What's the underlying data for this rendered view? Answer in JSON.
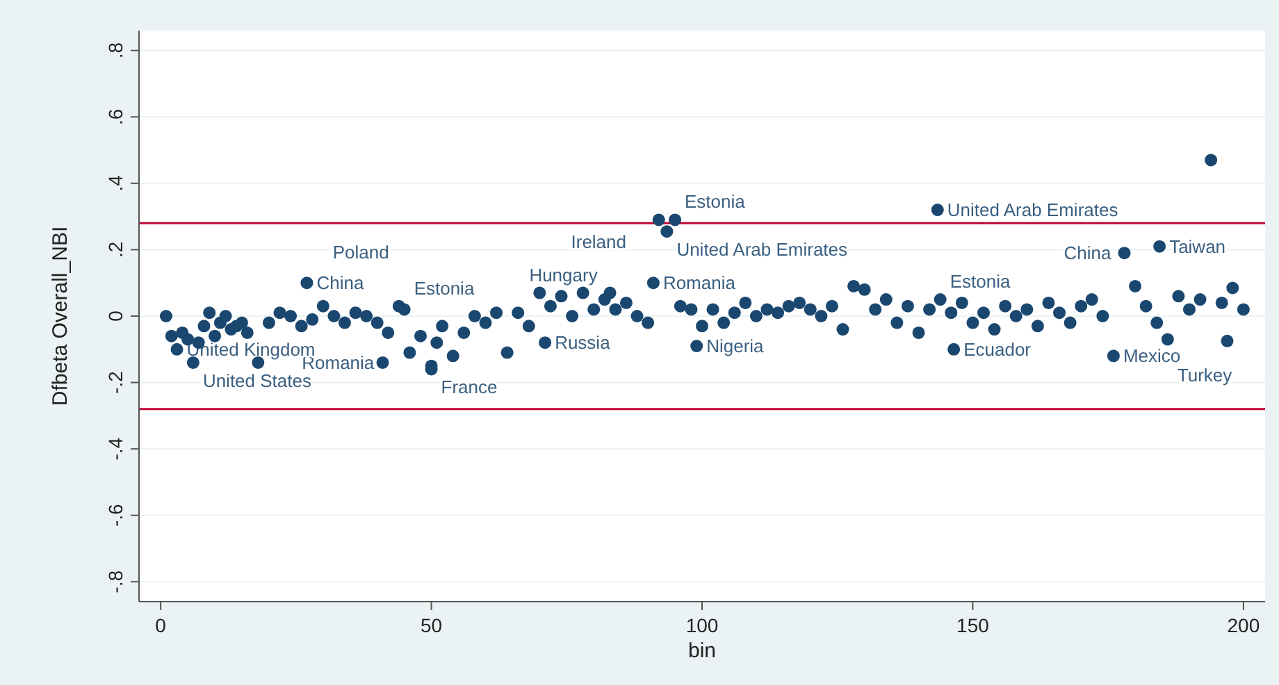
{
  "chart_data": {
    "type": "scatter",
    "xlabel": "bin",
    "ylabel": "Dfbeta Overall_NBI",
    "xlim": [
      -4,
      204
    ],
    "ylim": [
      -0.86,
      0.86
    ],
    "xticks": [
      0,
      50,
      100,
      150,
      200
    ],
    "yticks": [
      {
        "value": -0.8,
        "label": "-.8"
      },
      {
        "value": -0.6,
        "label": "-.6"
      },
      {
        "value": -0.4,
        "label": "-.4"
      },
      {
        "value": -0.2,
        "label": "-.2"
      },
      0,
      {
        "value": 0.2,
        "label": ".2"
      },
      {
        "value": 0.4,
        "label": ".4"
      },
      {
        "value": 0.6,
        "label": ".6"
      },
      {
        "value": 0.8,
        "label": ".8"
      }
    ],
    "grid": "y",
    "marker": "circle",
    "series": [
      {
        "color": "#1a476f",
        "x": [
          1,
          2,
          3,
          4,
          5,
          6,
          7,
          8,
          9,
          10,
          11,
          12,
          13,
          14,
          15,
          16,
          18,
          20,
          22,
          24,
          26,
          27,
          28,
          30,
          32,
          34,
          36,
          38,
          40,
          41,
          42,
          44,
          45,
          46,
          48,
          50,
          50,
          51,
          52,
          54,
          56,
          58,
          60,
          62,
          64,
          66,
          68,
          70,
          71,
          72,
          74,
          76,
          78,
          80,
          82,
          83,
          84,
          86,
          88,
          90,
          91,
          92,
          93.5,
          95,
          96,
          98,
          99,
          100,
          102,
          104,
          106,
          108,
          110,
          112,
          114,
          116,
          118,
          120,
          122,
          124,
          126,
          128,
          130,
          132,
          134,
          136,
          138,
          140,
          142,
          143.5,
          144,
          146,
          146.5,
          148,
          150,
          152,
          154,
          156,
          158,
          160,
          162,
          164,
          166,
          168,
          170,
          172,
          174,
          176,
          178,
          180,
          182,
          184,
          184.5,
          186,
          188,
          190,
          192,
          194,
          196,
          197,
          198,
          200
        ],
        "values": [
          0,
          -0.06,
          -0.1,
          -0.05,
          -0.07,
          -0.14,
          -0.08,
          -0.03,
          0.01,
          -0.06,
          -0.02,
          0,
          -0.04,
          -0.03,
          -0.02,
          -0.05,
          -0.14,
          -0.02,
          0.01,
          0,
          -0.03,
          0.1,
          -0.01,
          0.03,
          0,
          -0.02,
          0.01,
          0,
          -0.02,
          -0.14,
          -0.05,
          0.03,
          0.02,
          -0.11,
          -0.06,
          -0.16,
          -0.15,
          -0.08,
          -0.03,
          -0.12,
          -0.05,
          0,
          -0.02,
          0.01,
          -0.11,
          0.01,
          -0.03,
          0.07,
          -0.08,
          0.03,
          0.06,
          0,
          0.07,
          0.02,
          0.05,
          0.07,
          0.02,
          0.04,
          0,
          -0.02,
          0.1,
          0.29,
          0.255,
          0.29,
          0.03,
          0.02,
          -0.09,
          -0.03,
          0.02,
          -0.02,
          0.01,
          0.04,
          0,
          0.02,
          0.01,
          0.03,
          0.04,
          0.02,
          0,
          0.03,
          -0.04,
          0.09,
          0.08,
          0.02,
          0.05,
          -0.02,
          0.03,
          -0.05,
          0.02,
          0.32,
          0.05,
          0.01,
          -0.1,
          0.04,
          -0.02,
          0.01,
          -0.04,
          0.03,
          0,
          0.02,
          -0.03,
          0.04,
          0.01,
          -0.02,
          0.03,
          0.05,
          0,
          -0.12,
          0.19,
          0.09,
          0.03,
          -0.02,
          0.21,
          -0.07,
          0.06,
          0.02,
          0.05,
          0.47,
          0.04,
          -0.075,
          0.085,
          0.02
        ]
      }
    ],
    "ref_lines": [
      {
        "axis": "y",
        "value": 0.28,
        "color": "#c10534"
      },
      {
        "axis": "y",
        "value": -0.28,
        "color": "#c10534"
      }
    ],
    "annotations": [
      {
        "text": "China",
        "x": 27,
        "y": 0.1
      },
      {
        "text": "Poland",
        "x": 30,
        "y": 0.03
      },
      {
        "text": "Estonia",
        "x": 45,
        "y": 0.03
      },
      {
        "text": "United Kingdom",
        "x": 3,
        "y": -0.1
      },
      {
        "text": "United States",
        "x": 6,
        "y": -0.14
      },
      {
        "text": "Romania",
        "x": 41,
        "y": -0.14
      },
      {
        "text": "France",
        "x": 50,
        "y": -0.16
      },
      {
        "text": "Russia",
        "x": 71,
        "y": -0.08
      },
      {
        "text": "Ireland",
        "x": 74,
        "y": 0.06
      },
      {
        "text": "Hungary",
        "x": 83,
        "y": 0.07
      },
      {
        "text": "Romania",
        "x": 91,
        "y": 0.1
      },
      {
        "text": "Estonia",
        "x": 95,
        "y": 0.29
      },
      {
        "text": "United Arab Emirates",
        "x": 93.5,
        "y": 0.255
      },
      {
        "text": "Nigeria",
        "x": 99,
        "y": -0.09
      },
      {
        "text": "United Arab Emirates",
        "x": 143.5,
        "y": 0.32
      },
      {
        "text": "Estonia",
        "x": 144,
        "y": 0.05
      },
      {
        "text": "Ecuador",
        "x": 146.5,
        "y": -0.1
      },
      {
        "text": "China",
        "x": 178,
        "y": 0.19
      },
      {
        "text": "Taiwan",
        "x": 184.5,
        "y": 0.21
      },
      {
        "text": "Mexico",
        "x": 176,
        "y": -0.12
      },
      {
        "text": "Turkey",
        "x": 186,
        "y": -0.07
      }
    ]
  }
}
